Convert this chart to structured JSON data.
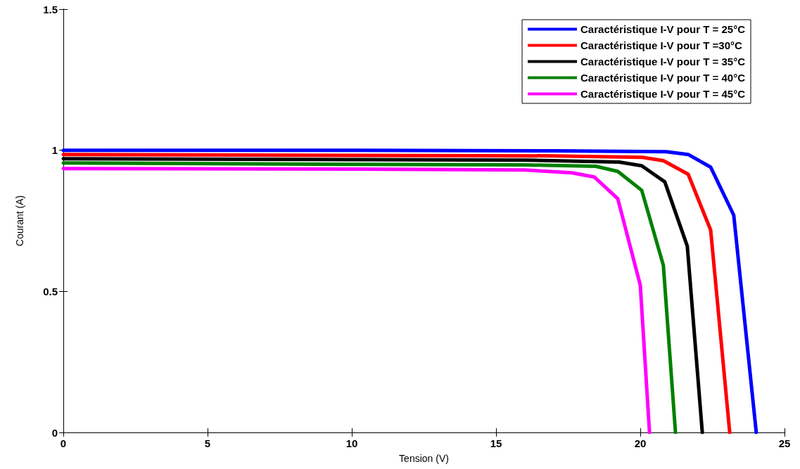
{
  "chart_data": {
    "type": "line",
    "xlabel": "Tension (V)",
    "ylabel": "Courant (A)",
    "xlim": [
      0,
      25
    ],
    "ylim": [
      0,
      1.5
    ],
    "xticks": [
      0,
      5,
      10,
      15,
      20,
      25
    ],
    "yticks": [
      0,
      0.5,
      1,
      1.5
    ],
    "grid": false,
    "legend": "top right",
    "marker": "none",
    "line_style": "solid",
    "series": [
      {
        "name": "Caractéristique I-V pour T = 25°C",
        "color": "#0000ff",
        "x": [
          0,
          10,
          17,
          20.9,
          21.66,
          22.44,
          23.24,
          24.02
        ],
        "values": [
          1.0,
          1.0,
          0.998,
          0.995,
          0.985,
          0.94,
          0.77,
          0
        ]
      },
      {
        "name": "Caractéristique I-V pour T =30°C",
        "color": "#ff0000",
        "x": [
          0,
          10,
          17,
          20.07,
          20.8,
          21.66,
          22.44,
          23.1
        ],
        "values": [
          0.985,
          0.982,
          0.98,
          0.975,
          0.963,
          0.915,
          0.717,
          0
        ]
      },
      {
        "name": "Caractéristique I-V pour T = 35°C",
        "color": "#000000",
        "x": [
          0,
          10,
          16,
          19.27,
          20.05,
          20.85,
          21.63,
          22.15
        ],
        "values": [
          0.97,
          0.967,
          0.965,
          0.958,
          0.945,
          0.888,
          0.66,
          0
        ]
      },
      {
        "name": "Caractéristique I-V pour T = 40°C",
        "color": "#008000",
        "x": [
          0,
          10,
          16,
          18.46,
          19.22,
          20.05,
          20.8,
          21.22
        ],
        "values": [
          0.955,
          0.95,
          0.948,
          0.943,
          0.925,
          0.858,
          0.592,
          0
        ]
      },
      {
        "name": "Caractéristique I-V pour T = 45°C",
        "color": "#ff00ff",
        "x": [
          0,
          10,
          16,
          17.63,
          18.41,
          19.22,
          20.0,
          20.32
        ],
        "values": [
          0.935,
          0.933,
          0.93,
          0.92,
          0.905,
          0.828,
          0.522,
          0
        ]
      }
    ]
  }
}
